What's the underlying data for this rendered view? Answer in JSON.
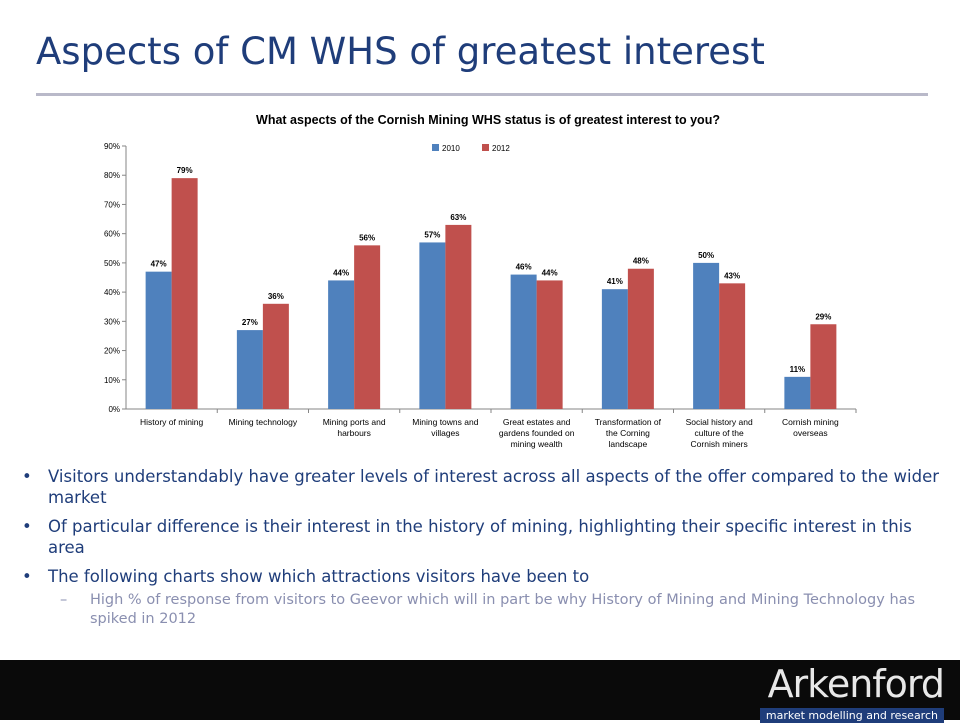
{
  "slide": {
    "title": "Aspects of CM WHS of greatest interest"
  },
  "chart_data": {
    "type": "bar",
    "title": "What aspects of the Cornish Mining WHS status is of greatest interest to you?",
    "categories": [
      "History of mining",
      "Mining technology",
      "Mining ports and harbours",
      "Mining towns and villages",
      "Great estates and gardens founded on mining wealth",
      "Transformation of the Corning landscape",
      "Social history and culture of the Cornish miners",
      "Cornish mining overseas"
    ],
    "category_lines": [
      [
        "History of mining"
      ],
      [
        "Mining technology"
      ],
      [
        "Mining ports and",
        "harbours"
      ],
      [
        "Mining towns and",
        "villages"
      ],
      [
        "Great estates and",
        "gardens founded on",
        "mining wealth"
      ],
      [
        "Transformation of",
        "the Corning",
        "landscape"
      ],
      [
        "Social history and",
        "culture of the",
        "Cornish miners"
      ],
      [
        "Cornish mining",
        "overseas"
      ]
    ],
    "series": [
      {
        "name": "2010",
        "color": "#4f81bd",
        "values": [
          47,
          27,
          44,
          57,
          46,
          41,
          50,
          11
        ]
      },
      {
        "name": "2012",
        "color": "#c0504d",
        "values": [
          79,
          36,
          56,
          63,
          44,
          48,
          43,
          29
        ]
      }
    ],
    "ylim": [
      0,
      90
    ],
    "yticks": [
      "0%",
      "10%",
      "20%",
      "30%",
      "40%",
      "50%",
      "60%",
      "70%",
      "80%",
      "90%"
    ],
    "value_suffix": "%",
    "legend_position": "top-center",
    "grid": false
  },
  "bullets": [
    "Visitors understandably have greater levels of interest across all aspects of the offer compared to the wider market",
    "Of particular difference is their interest in the history of mining, highlighting their specific interest in this area",
    "The following charts show which attractions visitors have been to"
  ],
  "sub_bullet": {
    "dash": "–",
    "text": "High % of response from visitors to Geevor which will in part be why History of Mining and Mining Technology has spiked in 2012"
  },
  "logo": {
    "word": "Arkenford",
    "tagline": "market modelling and research"
  },
  "colors": {
    "title": "#1f3d7a",
    "series_2010": "#4f81bd",
    "series_2012": "#c0504d",
    "footer": "#0a0a0a"
  }
}
